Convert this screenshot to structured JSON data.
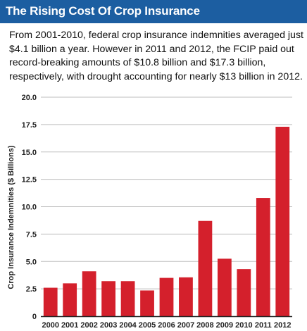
{
  "header": {
    "title": "The Rising Cost Of Crop Insurance",
    "background_color": "#1c5ea1"
  },
  "intro": {
    "text": "From 2001-2010, federal crop insurance indemnities averaged just $4.1 billion a year. However in 2011 and 2012, the FCIP paid out record-breaking amounts of $10.8 billion and $17.3 billion, respectively, with drought accounting for nearly $13 billion in 2012."
  },
  "chart_data": {
    "type": "bar",
    "categories": [
      "2000",
      "2001",
      "2002",
      "2003",
      "2004",
      "2005",
      "2006",
      "2007",
      "2008",
      "2009",
      "2010",
      "2011",
      "2012"
    ],
    "values": [
      2.6,
      3.0,
      4.1,
      3.2,
      3.2,
      2.35,
      3.5,
      3.55,
      8.7,
      5.25,
      4.3,
      10.8,
      17.3
    ],
    "title": "",
    "xlabel": "",
    "ylabel": "Crop Insurance Indemnities ($ Billions)",
    "ylim": [
      0,
      20
    ],
    "yticks": [
      "0",
      "2.5",
      "5.0",
      "7.5",
      "10.0",
      "12.5",
      "15.0",
      "17.5",
      "20.0"
    ],
    "grid": true,
    "legend": "none",
    "bar_color": "#d4202c"
  }
}
